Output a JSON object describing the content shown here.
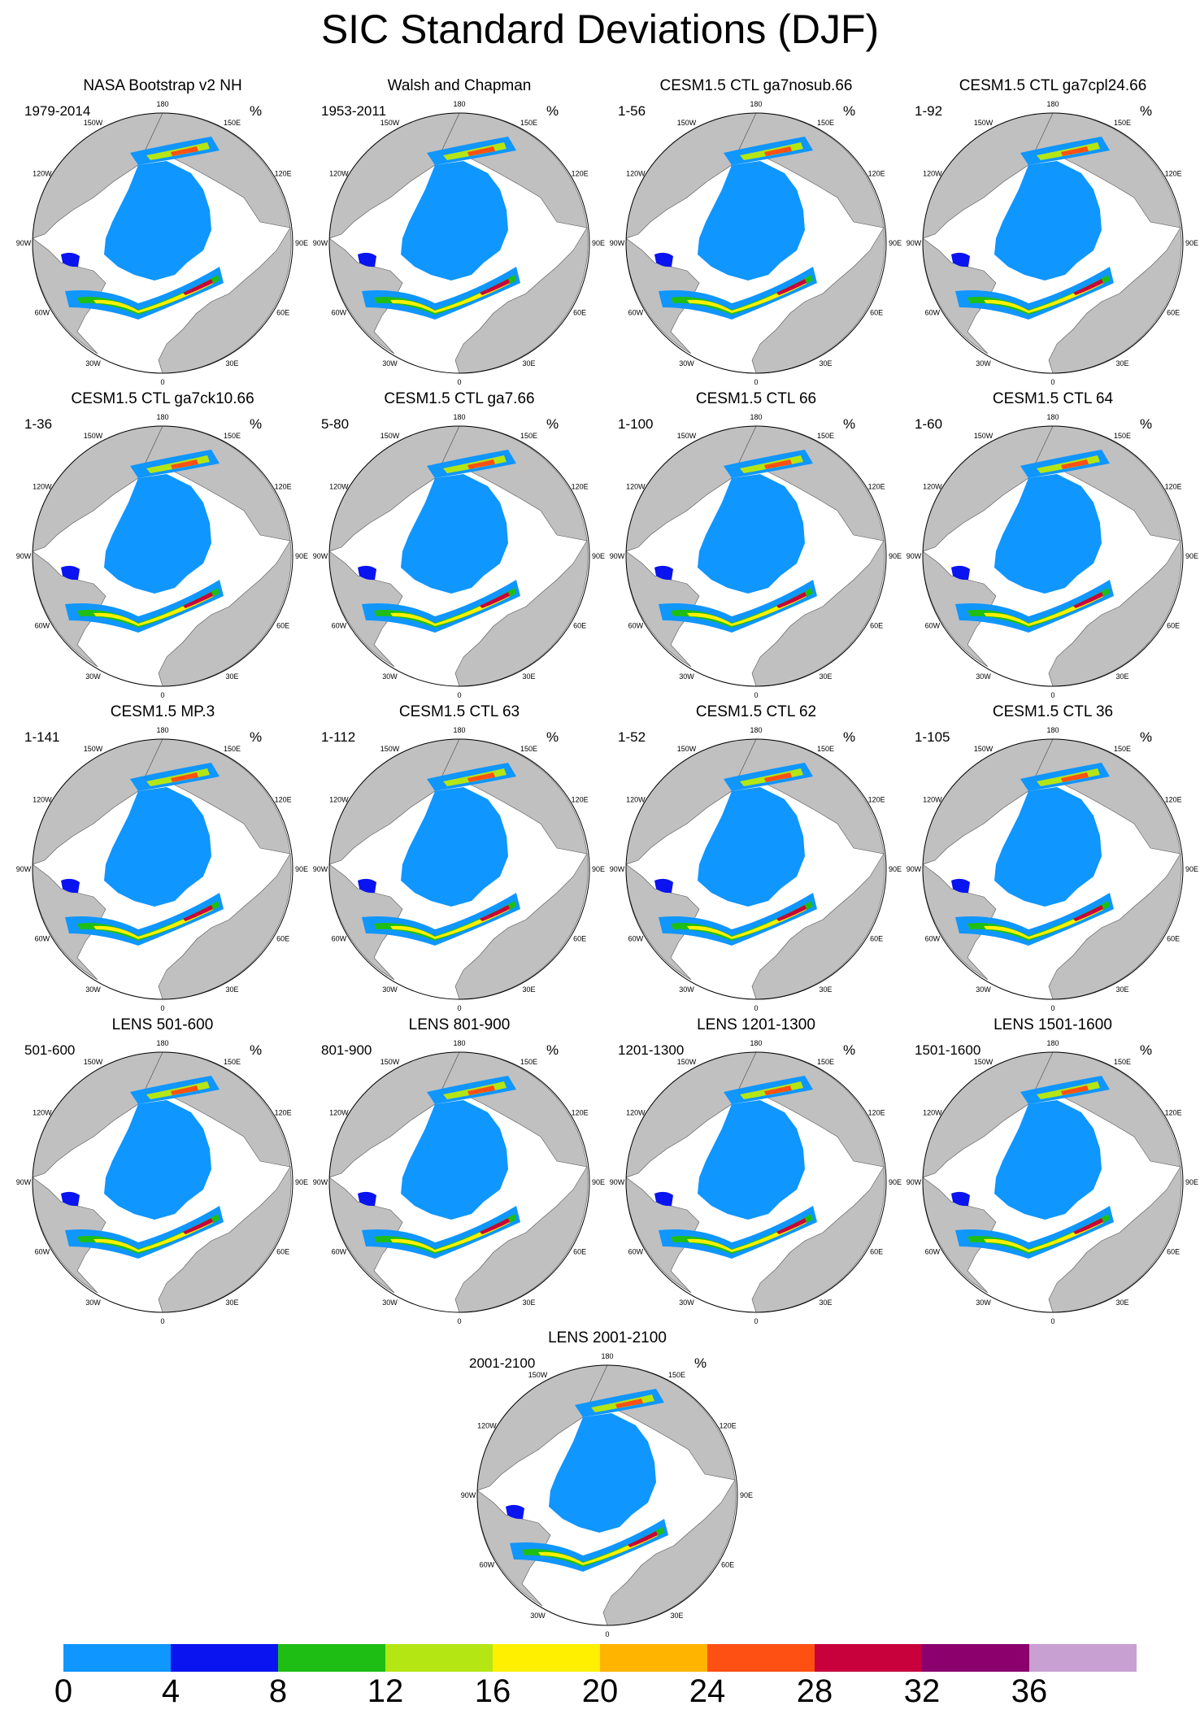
{
  "title": "SIC Standard Deviations (DJF)",
  "colors": {
    "land": "#c0c0c0",
    "ocean": "#ffffff",
    "bins": [
      "#0f96ff",
      "#0a14f0",
      "#1ebe14",
      "#b4e614",
      "#fff000",
      "#ffb400",
      "#ff5014",
      "#c8003c",
      "#8c006e",
      "#c8a0d2"
    ]
  },
  "colorbar": {
    "labels": [
      "0",
      "4",
      "8",
      "12",
      "16",
      "20",
      "24",
      "28",
      "32",
      "36"
    ]
  },
  "map": {
    "lon_labels": [
      "180",
      "150E",
      "120E",
      "90E",
      "60E",
      "30E",
      "0",
      "30W",
      "60W",
      "90W",
      "120W",
      "150W"
    ]
  },
  "panels": [
    {
      "title": "NASA Bootstrap v2 NH",
      "range": "1979-2014",
      "units": "%"
    },
    {
      "title": "Walsh and Chapman",
      "range": "1953-2011",
      "units": "%"
    },
    {
      "title": "CESM1.5 CTL ga7nosub.66",
      "range": "1-56",
      "units": "%"
    },
    {
      "title": "CESM1.5 CTL ga7cpl24.66",
      "range": "1-92",
      "units": "%"
    },
    {
      "title": "CESM1.5 CTL ga7ck10.66",
      "range": "1-36",
      "units": "%"
    },
    {
      "title": "CESM1.5 CTL ga7.66",
      "range": "5-80",
      "units": "%"
    },
    {
      "title": "CESM1.5 CTL 66",
      "range": "1-100",
      "units": "%"
    },
    {
      "title": "CESM1.5 CTL 64",
      "range": "1-60",
      "units": "%"
    },
    {
      "title": "CESM1.5 MP.3",
      "range": "1-141",
      "units": "%"
    },
    {
      "title": "CESM1.5 CTL 63",
      "range": "1-112",
      "units": "%"
    },
    {
      "title": "CESM1.5 CTL 62",
      "range": "1-52",
      "units": "%"
    },
    {
      "title": "CESM1.5 CTL 36",
      "range": "1-105",
      "units": "%"
    },
    {
      "title": "LENS 501-600",
      "range": "501-600",
      "units": "%"
    },
    {
      "title": "LENS 801-900",
      "range": "801-900",
      "units": "%"
    },
    {
      "title": "LENS 1201-1300",
      "range": "1201-1300",
      "units": "%"
    },
    {
      "title": "LENS 1501-1600",
      "range": "1501-1600",
      "units": "%"
    },
    {
      "title": "LENS 2001-2100",
      "range": "2001-2100",
      "units": "%"
    }
  ]
}
